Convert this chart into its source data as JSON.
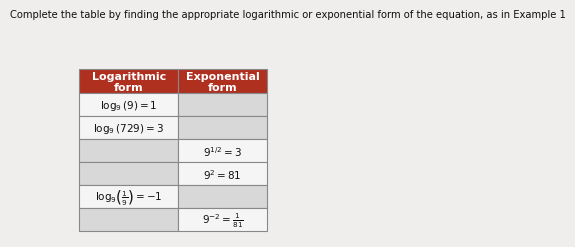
{
  "title": "Complete the table by finding the appropriate logarithmic or exponential form of the equation, as in Example 1",
  "title_fontsize": 7.2,
  "col1_header": "Logarithmic\nform",
  "col2_header": "Exponential\nform",
  "rows": [
    {
      "log_filled": true,
      "exp_filled": false
    },
    {
      "log_filled": true,
      "exp_filled": false
    },
    {
      "log_filled": false,
      "exp_filled": true
    },
    {
      "log_filled": false,
      "exp_filled": true
    },
    {
      "log_filled": true,
      "exp_filled": false
    },
    {
      "log_filled": false,
      "exp_filled": true
    }
  ],
  "header_bg": "#b03020",
  "header_text_color": "#ffffff",
  "filled_bg": "#f5f5f5",
  "empty_bg": "#d8d8d8",
  "border_color": "#888888",
  "text_color": "#111111",
  "background": "#f0eeec"
}
